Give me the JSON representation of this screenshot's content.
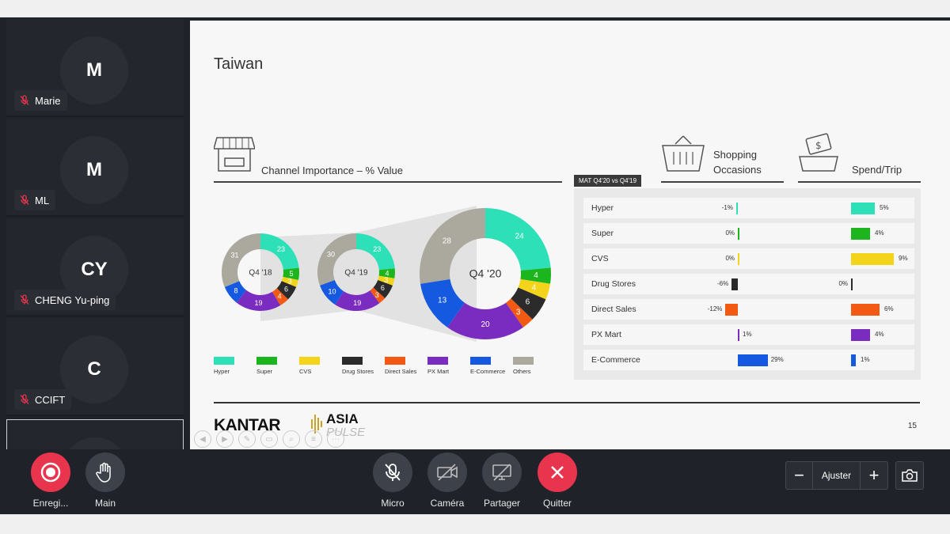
{
  "participants": [
    {
      "initials": "M",
      "name": "Marie"
    },
    {
      "initials": "M",
      "name": "ML"
    },
    {
      "initials": "CY",
      "name": "CHENG Yu-ping"
    },
    {
      "initials": "C",
      "name": "CCIFT"
    }
  ],
  "slide": {
    "title": "Taiwan",
    "channel_label": "Channel Importance – % Value",
    "shopping_label_1": "Shopping",
    "shopping_label_2": "Occasions",
    "spend_label": "Spend/Trip",
    "mat_badge": "MAT Q4'20 vs Q4'19",
    "page_number": "15",
    "brand": "KANTAR",
    "brand2_top": "ASIA",
    "brand2_bottom": "PULSE"
  },
  "chart_data": [
    {
      "type": "pie",
      "title": "Channel Importance – % Value",
      "categories": [
        "Hyper",
        "Super",
        "CVS",
        "Drug Stores",
        "Direct Sales",
        "PX Mart",
        "E-Commerce",
        "Others"
      ],
      "colors": [
        "#2ee0b8",
        "#1db51d",
        "#f3d41a",
        "#2b2b2b",
        "#f25a13",
        "#7b2cc0",
        "#1559e0",
        "#aba89d"
      ],
      "series": [
        {
          "name": "Q4 '18",
          "values": [
            23,
            5,
            3,
            6,
            4,
            19,
            8,
            31
          ]
        },
        {
          "name": "Q4 '19",
          "values": [
            23,
            4,
            3,
            6,
            3,
            19,
            10,
            30
          ]
        },
        {
          "name": "Q4 '20",
          "values": [
            24,
            4,
            4,
            6,
            3,
            20,
            13,
            28
          ]
        }
      ]
    },
    {
      "type": "bar",
      "title": "Shopping Occasions",
      "categories": [
        "Hyper",
        "Super",
        "CVS",
        "Drug Stores",
        "Direct Sales",
        "PX Mart",
        "E-Commerce"
      ],
      "values": [
        -1,
        0,
        0,
        -6,
        -12,
        1,
        29
      ],
      "labels": [
        "-1%",
        "0%",
        "0%",
        "-6%",
        "-12%",
        "1%",
        "29%"
      ]
    },
    {
      "type": "bar",
      "title": "Spend/Trip",
      "categories": [
        "Hyper",
        "Super",
        "CVS",
        "Drug Stores",
        "Direct Sales",
        "PX Mart",
        "E-Commerce"
      ],
      "values": [
        5,
        4,
        9,
        0,
        6,
        4,
        1
      ],
      "labels": [
        "5%",
        "4%",
        "9%",
        "0%",
        "6%",
        "4%",
        "1%"
      ]
    }
  ],
  "controls": {
    "record": "Enregi...",
    "hand": "Main",
    "mic": "Micro",
    "camera": "Caméra",
    "share": "Partager",
    "quit": "Quitter",
    "zoom_fit": "Ajuster",
    "zoom_minus": "−",
    "zoom_plus": "+"
  },
  "colors": {
    "record": "#e8344d",
    "quit": "#e8344d",
    "panel": "#23272d",
    "bar_bg": "#1f2329"
  }
}
